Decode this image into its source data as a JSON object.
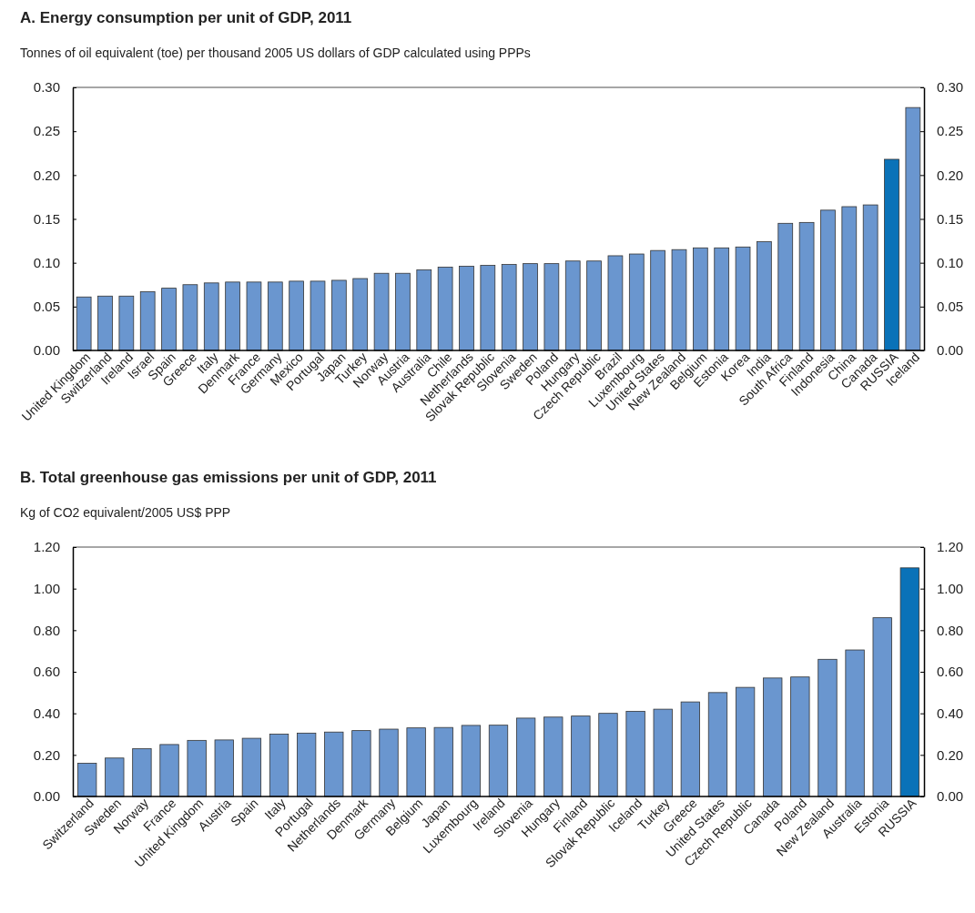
{
  "chart_data": [
    {
      "type": "bar",
      "title": "A. Energy consumption per unit of GDP, 2011",
      "subtitle": "Tonnes of oil equivalent (toe) per thousand 2005 US dollars of GDP calculated using PPPs",
      "categories": [
        "United Kingdom",
        "Switzerland",
        "Ireland",
        "Israel",
        "Spain",
        "Greece",
        "Italy",
        "Denmark",
        "France",
        "Germany",
        "Mexico",
        "Portugal",
        "Japan",
        "Turkey",
        "Norway",
        "Austria",
        "Australia",
        "Chile",
        "Netherlands",
        "Slovak Republic",
        "Slovenia",
        "Sweden",
        "Poland",
        "Hungary",
        "Czech Republic",
        "Brazil",
        "Luxembourg",
        "United States",
        "New Zealand",
        "Belgium",
        "Estonia",
        "Korea",
        "India",
        "South Africa",
        "Finland",
        "Indonesia",
        "China",
        "Canada",
        "RUSSIA",
        "Iceland"
      ],
      "values": [
        0.061,
        0.062,
        0.062,
        0.067,
        0.071,
        0.075,
        0.077,
        0.078,
        0.078,
        0.078,
        0.079,
        0.079,
        0.08,
        0.082,
        0.088,
        0.088,
        0.092,
        0.095,
        0.096,
        0.097,
        0.098,
        0.099,
        0.099,
        0.102,
        0.102,
        0.108,
        0.11,
        0.114,
        0.115,
        0.117,
        0.117,
        0.118,
        0.124,
        0.145,
        0.146,
        0.16,
        0.164,
        0.166,
        0.218,
        0.277
      ],
      "colors": [
        "#6a96cf",
        "#6a96cf",
        "#6a96cf",
        "#6a96cf",
        "#6a96cf",
        "#6a96cf",
        "#6a96cf",
        "#6a96cf",
        "#6a96cf",
        "#6a96cf",
        "#6a96cf",
        "#6a96cf",
        "#6a96cf",
        "#6a96cf",
        "#6a96cf",
        "#6a96cf",
        "#6a96cf",
        "#6a96cf",
        "#6a96cf",
        "#6a96cf",
        "#6a96cf",
        "#6a96cf",
        "#6a96cf",
        "#6a96cf",
        "#6a96cf",
        "#6a96cf",
        "#6a96cf",
        "#6a96cf",
        "#6a96cf",
        "#6a96cf",
        "#6a96cf",
        "#6a96cf",
        "#6a96cf",
        "#6a96cf",
        "#6a96cf",
        "#6a96cf",
        "#6a96cf",
        "#6a96cf",
        "#0a72b8",
        "#6a96cf"
      ],
      "ylim": [
        0,
        0.3
      ],
      "yticks": [
        {
          "value": 0,
          "label": "0.00"
        },
        {
          "value": 0.05,
          "label": "0.05"
        },
        {
          "value": 0.1,
          "label": "0.10"
        },
        {
          "value": 0.15,
          "label": "0.15"
        },
        {
          "value": 0.2,
          "label": "0.20"
        },
        {
          "value": 0.25,
          "label": "0.25"
        },
        {
          "value": 0.3,
          "label": "0.30"
        }
      ],
      "y2lim": [
        0,
        0.3
      ],
      "y2ticks": [
        {
          "value": 0,
          "label": "0.00"
        },
        {
          "value": 0.05,
          "label": "0.05"
        },
        {
          "value": 0.1,
          "label": "0.10"
        },
        {
          "value": 0.15,
          "label": "0.15"
        },
        {
          "value": 0.2,
          "label": "0.20"
        },
        {
          "value": 0.25,
          "label": "0.25"
        },
        {
          "value": 0.3,
          "label": "0.30"
        }
      ]
    },
    {
      "type": "bar",
      "title": "B. Total greenhouse gas emissions per unit of GDP, 2011",
      "subtitle": "Kg of CO2 equivalent/2005 US$ PPP",
      "categories": [
        "Switzerland",
        "Sweden",
        "Norway",
        "France",
        "United Kingdom",
        "Austria",
        "Spain",
        "Italy",
        "Portugal",
        "Netherlands",
        "Denmark",
        "Germany",
        "Belgium",
        "Japan",
        "Luxembourg",
        "Ireland",
        "Slovenia",
        "Hungary",
        "Finland",
        "Slovak Republic",
        "Iceland",
        "Turkey",
        "Greece",
        "United States",
        "Czech Republic",
        "Canada",
        "Poland",
        "New Zealand",
        "Australia",
        "Estonia",
        "RUSSIA"
      ],
      "values": [
        0.16,
        0.185,
        0.23,
        0.25,
        0.27,
        0.272,
        0.28,
        0.3,
        0.305,
        0.31,
        0.317,
        0.324,
        0.33,
        0.332,
        0.342,
        0.343,
        0.377,
        0.382,
        0.387,
        0.4,
        0.41,
        0.42,
        0.455,
        0.5,
        0.525,
        0.57,
        0.575,
        0.66,
        0.705,
        0.86,
        1.1
      ],
      "colors": [
        "#6a96cf",
        "#6a96cf",
        "#6a96cf",
        "#6a96cf",
        "#6a96cf",
        "#6a96cf",
        "#6a96cf",
        "#6a96cf",
        "#6a96cf",
        "#6a96cf",
        "#6a96cf",
        "#6a96cf",
        "#6a96cf",
        "#6a96cf",
        "#6a96cf",
        "#6a96cf",
        "#6a96cf",
        "#6a96cf",
        "#6a96cf",
        "#6a96cf",
        "#6a96cf",
        "#6a96cf",
        "#6a96cf",
        "#6a96cf",
        "#6a96cf",
        "#6a96cf",
        "#6a96cf",
        "#6a96cf",
        "#6a96cf",
        "#6a96cf",
        "#0a72b8"
      ],
      "ylim": [
        0,
        1.2
      ],
      "yticks": [
        {
          "value": 0,
          "label": "0.00"
        },
        {
          "value": 0.2,
          "label": "0.20"
        },
        {
          "value": 0.4,
          "label": "0.40"
        },
        {
          "value": 0.6,
          "label": "0.60"
        },
        {
          "value": 0.8,
          "label": "0.80"
        },
        {
          "value": 1.0,
          "label": "1.00"
        },
        {
          "value": 1.2,
          "label": "1.20"
        }
      ],
      "y2lim": [
        0,
        1.2
      ],
      "y2ticks": [
        {
          "value": 0,
          "label": "0.00"
        },
        {
          "value": 0.2,
          "label": "0.20"
        },
        {
          "value": 0.4,
          "label": "0.40"
        },
        {
          "value": 0.6,
          "label": "0.60"
        },
        {
          "value": 0.8,
          "label": "0.80"
        },
        {
          "value": 1.0,
          "label": "1.00"
        },
        {
          "value": 1.2,
          "label": "1.20"
        }
      ]
    }
  ]
}
